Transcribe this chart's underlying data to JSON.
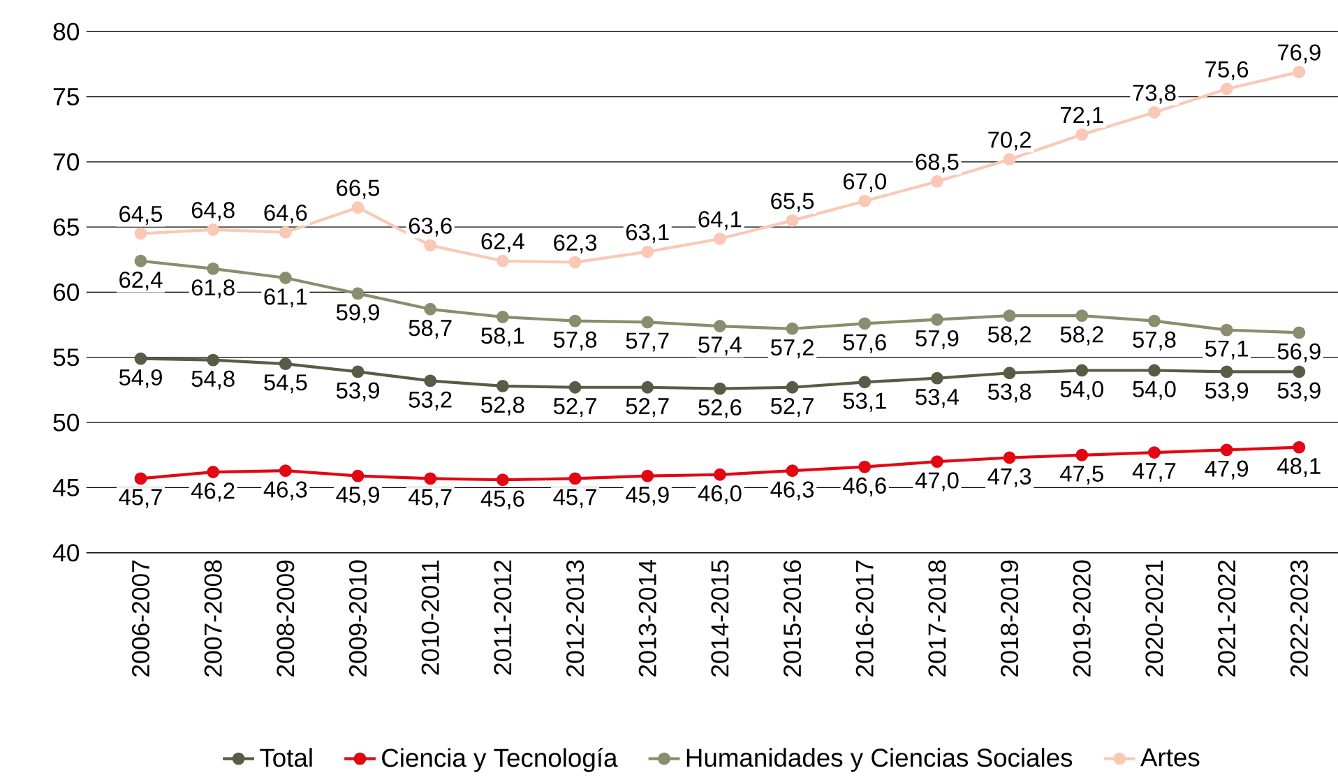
{
  "chart_data": {
    "type": "line",
    "categories": [
      "2006-2007",
      "2007-2008",
      "2008-2009",
      "2009-2010",
      "2010-2011",
      "2011-2012",
      "2012-2013",
      "2013-2014",
      "2014-2015",
      "2015-2016",
      "2016-2017",
      "2017-2018",
      "2018-2019",
      "2019-2020",
      "2020-2021",
      "2021-2022",
      "2022-2023"
    ],
    "series": [
      {
        "name": "Total",
        "color": "#5a5a46",
        "values": [
          54.9,
          54.8,
          54.5,
          53.9,
          53.2,
          52.8,
          52.7,
          52.7,
          52.6,
          52.7,
          53.1,
          53.4,
          53.8,
          54.0,
          54.0,
          53.9,
          53.9
        ],
        "value_labels": [
          "54,9",
          "54,8",
          "54,5",
          "53,9",
          "53,2",
          "52,8",
          "52,7",
          "52,7",
          "52,6",
          "52,7",
          "53,1",
          "53,4",
          "53,8",
          "54,0",
          "54,0",
          "53,9",
          "53,9"
        ]
      },
      {
        "name": "Ciencia y Tecnología",
        "color": "#e30613",
        "values": [
          45.7,
          46.2,
          46.3,
          45.9,
          45.7,
          45.6,
          45.7,
          45.9,
          46.0,
          46.3,
          46.6,
          47.0,
          47.3,
          47.5,
          47.7,
          47.9,
          48.1
        ],
        "value_labels": [
          "45,7",
          "46,2",
          "46,3",
          "45,9",
          "45,7",
          "45,6",
          "45,7",
          "45,9",
          "46,0",
          "46,3",
          "46,6",
          "47,0",
          "47,3",
          "47,5",
          "47,7",
          "47,9",
          "48,1"
        ]
      },
      {
        "name": "Humanidades y Ciencias Sociales",
        "color": "#8c8c6e",
        "values": [
          62.4,
          61.8,
          61.1,
          59.9,
          58.7,
          58.1,
          57.8,
          57.7,
          57.4,
          57.2,
          57.6,
          57.9,
          58.2,
          58.2,
          57.8,
          57.1,
          56.9
        ],
        "value_labels": [
          "62,4",
          "61,8",
          "61,1",
          "59,9",
          "58,7",
          "58,1",
          "57,8",
          "57,7",
          "57,4",
          "57,2",
          "57,6",
          "57,9",
          "58,2",
          "58,2",
          "57,8",
          "57,1",
          "56,9"
        ]
      },
      {
        "name": "Artes",
        "color": "#f9c9b6",
        "values": [
          64.5,
          64.8,
          64.6,
          66.5,
          63.6,
          62.4,
          62.3,
          63.1,
          64.1,
          65.5,
          67.0,
          68.5,
          70.2,
          72.1,
          73.8,
          75.6,
          76.9
        ],
        "value_labels": [
          "64,5",
          "64,8",
          "64,6",
          "66,5",
          "63,6",
          "62,4",
          "62,3",
          "63,1",
          "64,1",
          "65,5",
          "67,0",
          "68,5",
          "70,2",
          "72,1",
          "73,8",
          "75,6",
          "76,9"
        ]
      }
    ],
    "ylim": [
      40,
      80
    ],
    "yticks": [
      40,
      45,
      50,
      55,
      60,
      65,
      70,
      75,
      80
    ],
    "grid": "y",
    "legend": "bottom",
    "marker": "circle",
    "line_style": "solid"
  }
}
